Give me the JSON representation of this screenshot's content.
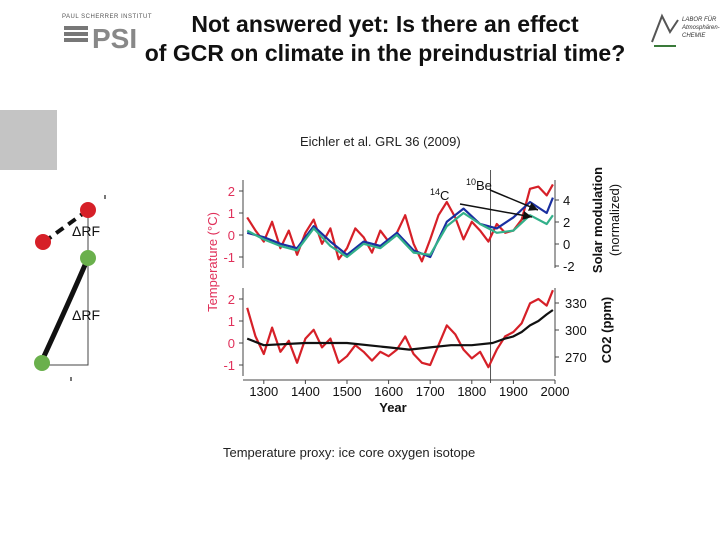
{
  "header": {
    "title_line1": "Not answered yet: Is there an effect",
    "title_line2": "of GCR on climate in the preindustrial time?",
    "logo_left_text": "PAUL SCHERRER INSTITUT",
    "logo_left_mark": "PSI",
    "logo_right_text_1": "LABOR FÜR",
    "logo_right_text_2": "Atmosphären-",
    "logo_right_text_3": "CHEMIE"
  },
  "citation": "Eichler et al. GRL 36 (2009)",
  "caption": "Temperature proxy: ice core oxygen isotope",
  "side_diagram": {
    "label_1": "ΔRF",
    "label_2": "ΔRF"
  },
  "colors": {
    "red": "#d62028",
    "black": "#111111",
    "blue": "#1a2fa0",
    "green": "#33b08a",
    "axis_pink": "#e0305a",
    "node_green": "#6ab04c"
  },
  "chart_data": {
    "type": "line",
    "xlabel": "Year",
    "x_ticks": [
      "1300",
      "1400",
      "1500",
      "1600",
      "1700",
      "1800",
      "1900",
      "2000"
    ],
    "xlim": [
      1250,
      2000
    ],
    "marker_line_year": 1845,
    "left_ylabel": "Temperature (°C)",
    "top_panel": {
      "ylim": [
        -1.5,
        2.5
      ],
      "y_ticks": [
        "2",
        "1",
        "0",
        "-1"
      ],
      "right_ylabel_1": "Solar modulation",
      "right_ylabel_2": "(normalized)",
      "right_ticks": [
        "4",
        "2",
        "0",
        "-2"
      ],
      "annotations": {
        "c14_sup": "14",
        "c14": "C",
        "be10_sup": "10",
        "be10": "Be"
      },
      "series": [
        {
          "name": "Temperature",
          "color": "red",
          "x": [
            1260,
            1280,
            1300,
            1320,
            1340,
            1360,
            1380,
            1400,
            1420,
            1440,
            1460,
            1480,
            1500,
            1520,
            1540,
            1560,
            1580,
            1600,
            1620,
            1640,
            1660,
            1680,
            1700,
            1720,
            1740,
            1760,
            1780,
            1800,
            1820,
            1840,
            1860,
            1880,
            1900,
            1920,
            1940,
            1960,
            1980,
            1995
          ],
          "y": [
            0.8,
            0.2,
            -0.3,
            0.6,
            -0.6,
            0.2,
            -0.9,
            0.1,
            0.7,
            -0.4,
            0.3,
            -1.1,
            -0.6,
            0.3,
            -0.1,
            -0.8,
            0.2,
            -0.3,
            0.1,
            0.9,
            -0.4,
            -1.2,
            -0.2,
            0.9,
            1.5,
            0.8,
            -0.2,
            0.6,
            0.2,
            -0.3,
            0.5,
            0.1,
            0.2,
            0.7,
            2.1,
            2.2,
            1.8,
            2.3
          ]
        },
        {
          "name": "14C",
          "color": "blue",
          "x": [
            1260,
            1300,
            1340,
            1380,
            1420,
            1460,
            1500,
            1540,
            1580,
            1620,
            1660,
            1700,
            1740,
            1780,
            1820,
            1860,
            1900,
            1940,
            1980,
            1995
          ],
          "y": [
            0.1,
            -0.1,
            -0.4,
            -0.6,
            0.4,
            -0.3,
            -0.9,
            -0.3,
            -0.5,
            0.1,
            -0.7,
            -1.0,
            0.6,
            1.2,
            0.5,
            0.3,
            0.8,
            1.5,
            1.0,
            1.7
          ]
        },
        {
          "name": "10Be",
          "color": "green",
          "x": [
            1260,
            1300,
            1340,
            1380,
            1420,
            1460,
            1500,
            1540,
            1580,
            1620,
            1660,
            1700,
            1740,
            1780,
            1820,
            1860,
            1900,
            1940,
            1980,
            1995
          ],
          "y": [
            0.2,
            -0.2,
            -0.5,
            -0.7,
            0.3,
            -0.5,
            -1.0,
            -0.4,
            -0.6,
            0.0,
            -0.8,
            -0.9,
            0.4,
            1.0,
            0.5,
            0.1,
            0.2,
            0.9,
            0.5,
            0.9
          ]
        }
      ]
    },
    "bottom_panel": {
      "ylim": [
        -1.5,
        2.5
      ],
      "y_ticks": [
        "2",
        "1",
        "0",
        "-1"
      ],
      "right_ylabel": "CO2 (ppm)",
      "right_ticks": [
        "330",
        "300",
        "270"
      ],
      "series": [
        {
          "name": "Temperature",
          "color": "red",
          "x": [
            1260,
            1280,
            1300,
            1320,
            1340,
            1360,
            1380,
            1400,
            1420,
            1440,
            1460,
            1480,
            1500,
            1520,
            1540,
            1560,
            1580,
            1600,
            1620,
            1640,
            1660,
            1680,
            1700,
            1720,
            1740,
            1760,
            1780,
            1800,
            1820,
            1840,
            1860,
            1880,
            1900,
            1920,
            1940,
            1960,
            1980,
            1995
          ],
          "y": [
            1.6,
            0.3,
            -0.5,
            0.7,
            -0.4,
            0.1,
            -0.9,
            0.2,
            0.6,
            -0.2,
            0.2,
            -0.9,
            -0.6,
            -0.1,
            -0.4,
            -0.8,
            -0.4,
            -0.6,
            -0.3,
            0.3,
            -0.5,
            -0.9,
            -1.0,
            -0.1,
            0.8,
            0.4,
            -0.3,
            -0.7,
            -0.4,
            -1.1,
            -0.3,
            0.3,
            0.5,
            0.9,
            1.8,
            2.0,
            1.7,
            2.4
          ]
        },
        {
          "name": "CO2",
          "color": "black",
          "x": [
            1260,
            1300,
            1400,
            1500,
            1600,
            1650,
            1700,
            1750,
            1800,
            1850,
            1880,
            1900,
            1920,
            1940,
            1960,
            1980,
            1995
          ],
          "y": [
            0.2,
            -0.1,
            0.0,
            0.0,
            -0.2,
            -0.3,
            -0.2,
            -0.1,
            -0.1,
            0.0,
            0.2,
            0.3,
            0.5,
            0.8,
            1.0,
            1.3,
            1.5
          ]
        }
      ]
    }
  }
}
